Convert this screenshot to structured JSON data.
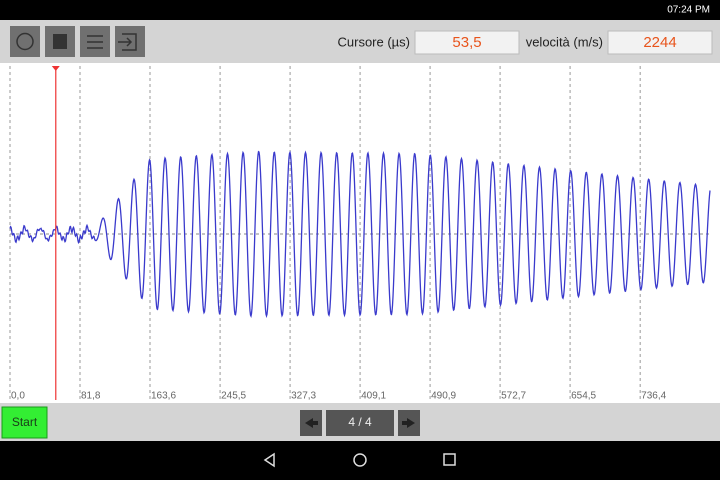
{
  "status_bar": {
    "time": "07:24 PM"
  },
  "toolbar": {
    "cursor_label": "Cursore (µs)",
    "velocity_label": "velocità (m/s)",
    "velocity_value": "2244"
  },
  "chart_data": {
    "type": "line",
    "xlim": [
      0,
      818
    ],
    "xticks": [
      {
        "value": 0,
        "label": "0,0"
      },
      {
        "value": 81.8,
        "label": "81,8"
      },
      {
        "value": 163.6,
        "label": "163,6"
      },
      {
        "value": 245.5,
        "label": "245,5"
      },
      {
        "value": 327.3,
        "label": "327,3"
      },
      {
        "value": 409.1,
        "label": "409,1"
      },
      {
        "value": 490.9,
        "label": "490,9"
      },
      {
        "value": 572.7,
        "label": "572,7"
      },
      {
        "value": 654.5,
        "label": "654,5"
      },
      {
        "value": 736.4,
        "label": "736,4"
      }
    ],
    "cursor": {
      "value": 53.5,
      "label": "53,5"
    }
  },
  "controls": {
    "start": "Start",
    "page": "4 / 4"
  }
}
